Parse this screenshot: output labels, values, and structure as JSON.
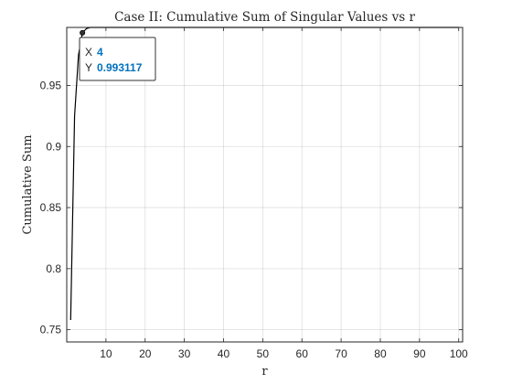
{
  "chart_data": {
    "type": "line",
    "title": "Case II: Cumulative Sum of Singular Values vs r",
    "xlabel": "r",
    "ylabel": "Cumulative Sum",
    "xlim": [
      0,
      101
    ],
    "ylim": [
      0.74,
      0.9975
    ],
    "xticks": [
      10,
      20,
      30,
      40,
      50,
      60,
      70,
      80,
      90,
      100
    ],
    "yticks": [
      0.75,
      0.8,
      0.85,
      0.9,
      0.95
    ],
    "ytick_labels": [
      "0.75",
      "0.8",
      "0.85",
      "0.9",
      "0.95"
    ],
    "grid": true,
    "series": [
      {
        "name": "Cumulative Sum",
        "color": "#000000",
        "x": [
          1,
          2,
          3,
          4,
          5,
          6,
          7,
          8,
          10,
          15,
          20,
          30,
          40,
          50,
          60,
          70,
          80,
          90,
          100
        ],
        "y": [
          0.758,
          0.925,
          0.975,
          0.993117,
          0.9965,
          0.9978,
          0.9985,
          0.999,
          0.9994,
          0.9997,
          0.9998,
          0.99995,
          1.0,
          1.0,
          1.0,
          1.0,
          1.0,
          1.0,
          1.0
        ]
      }
    ],
    "datatip": {
      "x_label": "X",
      "x_value": "4",
      "y_label": "Y",
      "y_value": "0.993117",
      "x": 4,
      "y": 0.993117
    }
  }
}
